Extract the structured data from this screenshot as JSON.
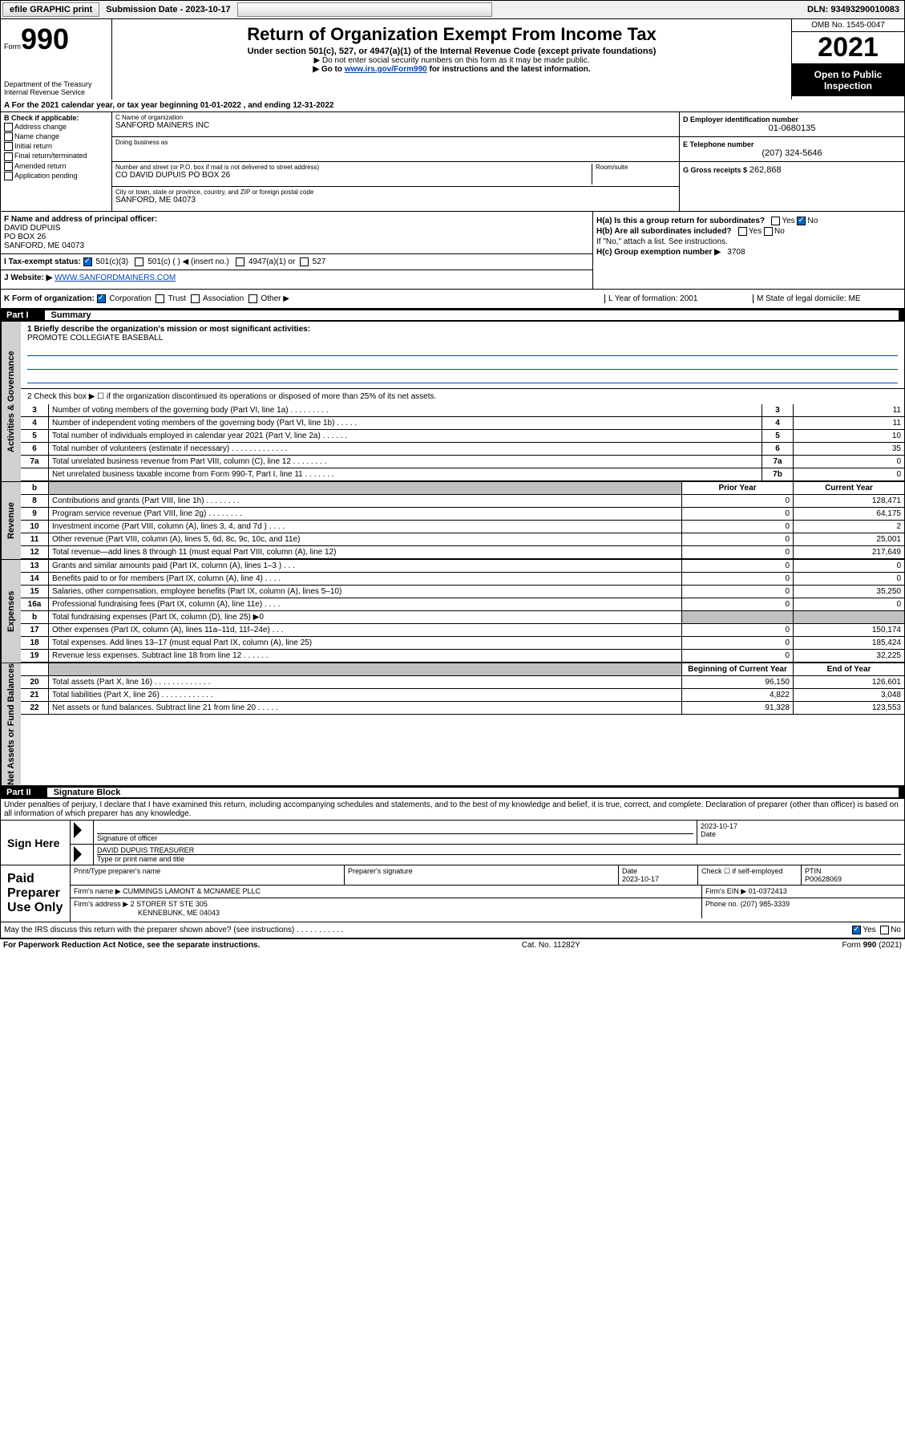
{
  "topbar": {
    "efile": "efile GRAPHIC print",
    "submission_label": "Submission Date",
    "submission_date": "2023-10-17",
    "dln": "DLN: 93493290010083"
  },
  "header": {
    "form_prefix": "Form",
    "form_number": "990",
    "dept": "Department of the Treasury",
    "irs": "Internal Revenue Service",
    "title": "Return of Organization Exempt From Income Tax",
    "subtitle": "Under section 501(c), 527, or 4947(a)(1) of the Internal Revenue Code (except private foundations)",
    "note1": "▶ Do not enter social security numbers on this form as it may be made public.",
    "note2_prefix": "▶ Go to ",
    "note2_link": "www.irs.gov/Form990",
    "note2_suffix": " for instructions and the latest information.",
    "omb": "OMB No. 1545-0047",
    "year": "2021",
    "inspection": "Open to Public Inspection"
  },
  "section_a": {
    "line_a": "A For the 2021 calendar year, or tax year beginning 01-01-2022   , and ending 12-31-2022",
    "b_label": "B Check if applicable:",
    "b_items": [
      "Address change",
      "Name change",
      "Initial return",
      "Final return/terminated",
      "Amended return",
      "Application pending"
    ],
    "c_name_label": "C Name of organization",
    "c_name": "SANFORD MAINERS INC",
    "dba_label": "Doing business as",
    "dba": "",
    "addr_label": "Number and street (or P.O. box if mail is not delivered to street address)",
    "room_label": "Room/suite",
    "addr": "CO DAVID DUPUIS PO BOX 26",
    "city_label": "City or town, state or province, country, and ZIP or foreign postal code",
    "city": "SANFORD, ME  04073",
    "d_label": "D Employer identification number",
    "d_val": "01-0680135",
    "e_label": "E Telephone number",
    "e_val": "(207) 324-5646",
    "g_label": "G Gross receipts $",
    "g_val": "262,868"
  },
  "fh": {
    "f_label": "F Name and address of principal officer:",
    "f_name": "DAVID DUPUIS",
    "f_addr1": "PO BOX 26",
    "f_addr2": "SANFORD, ME  04073",
    "ha": "H(a)  Is this a group return for subordinates?",
    "ha_yes": "Yes",
    "ha_no": "No",
    "hb": "H(b)  Are all subordinates included?",
    "hb_yes": "Yes",
    "hb_no": "No",
    "hb_note": "If \"No,\" attach a list. See instructions.",
    "hc": "H(c)  Group exemption number ▶",
    "hc_val": "3708",
    "i_label": "I   Tax-exempt status:",
    "i_501c3": "501(c)(3)",
    "i_501c": "501(c) (   ) ◀ (insert no.)",
    "i_4947": "4947(a)(1) or",
    "i_527": "527",
    "j_label": "J   Website: ▶",
    "j_val": "WWW.SANFORDMAINERS.COM"
  },
  "klm": {
    "k": "K Form of organization:",
    "k_corp": "Corporation",
    "k_trust": "Trust",
    "k_assoc": "Association",
    "k_other": "Other ▶",
    "l": "L Year of formation: 2001",
    "m": "M State of legal domicile: ME"
  },
  "part1": {
    "header_pt": "Part I",
    "header_title": "Summary",
    "tab_gov": "Activities & Governance",
    "tab_rev": "Revenue",
    "tab_exp": "Expenses",
    "tab_net": "Net Assets or Fund Balances",
    "q1": "1   Briefly describe the organization's mission or most significant activities:",
    "mission": "PROMOTE COLLEGIATE BASEBALL",
    "q2": "2   Check this box ▶ ☐  if the organization discontinued its operations or disposed of more than 25% of its net assets.",
    "rows_gov": [
      {
        "n": "3",
        "d": "Number of voting members of the governing body (Part VI, line 1a)   .    .    .    .    .    .    .    .    .",
        "b": "3",
        "v": "11"
      },
      {
        "n": "4",
        "d": "Number of independent voting members of the governing body (Part VI, line 1b)    .    .    .    .    .",
        "b": "4",
        "v": "11"
      },
      {
        "n": "5",
        "d": "Total number of individuals employed in calendar year 2021 (Part V, line 2a)   .    .    .    .    .    .",
        "b": "5",
        "v": "10"
      },
      {
        "n": "6",
        "d": "Total number of volunteers (estimate if necessary)    .    .    .    .    .    .    .    .    .    .    .    .    .",
        "b": "6",
        "v": "35"
      },
      {
        "n": "7a",
        "d": "Total unrelated business revenue from Part VIII, column (C), line 12   .    .    .    .    .    .    .    .",
        "b": "7a",
        "v": "0"
      },
      {
        "n": "",
        "d": "Net unrelated business taxable income from Form 990-T, Part I, line 11    .    .    .    .    .    .    .",
        "b": "7b",
        "v": "0"
      }
    ],
    "hdr_prior": "Prior Year",
    "hdr_curr": "Current Year",
    "rows_rev": [
      {
        "n": "8",
        "d": "Contributions and grants (Part VIII, line 1h)    .    .    .    .    .    .    .    .",
        "p": "0",
        "c": "128,471"
      },
      {
        "n": "9",
        "d": "Program service revenue (Part VIII, line 2g)    .    .    .    .    .    .    .    .",
        "p": "0",
        "c": "64,175"
      },
      {
        "n": "10",
        "d": "Investment income (Part VIII, column (A), lines 3, 4, and 7d )    .    .    .    .",
        "p": "0",
        "c": "2"
      },
      {
        "n": "11",
        "d": "Other revenue (Part VIII, column (A), lines 5, 6d, 8c, 9c, 10c, and 11e)",
        "p": "0",
        "c": "25,001"
      },
      {
        "n": "12",
        "d": "Total revenue—add lines 8 through 11 (must equal Part VIII, column (A), line 12)",
        "p": "0",
        "c": "217,649"
      }
    ],
    "rows_exp": [
      {
        "n": "13",
        "d": "Grants and similar amounts paid (Part IX, column (A), lines 1–3 )    .    .    .",
        "p": "0",
        "c": "0"
      },
      {
        "n": "14",
        "d": "Benefits paid to or for members (Part IX, column (A), line 4)    .    .    .    .",
        "p": "0",
        "c": "0"
      },
      {
        "n": "15",
        "d": "Salaries, other compensation, employee benefits (Part IX, column (A), lines 5–10)",
        "p": "0",
        "c": "35,250"
      },
      {
        "n": "16a",
        "d": "Professional fundraising fees (Part IX, column (A), line 11e)    .    .    .    .",
        "p": "0",
        "c": "0"
      },
      {
        "n": "b",
        "d": "Total fundraising expenses (Part IX, column (D), line 25) ▶0",
        "p": "",
        "c": "",
        "gray": true
      },
      {
        "n": "17",
        "d": "Other expenses (Part IX, column (A), lines 11a–11d, 11f–24e)    .    .    .",
        "p": "0",
        "c": "150,174"
      },
      {
        "n": "18",
        "d": "Total expenses. Add lines 13–17 (must equal Part IX, column (A), line 25)",
        "p": "0",
        "c": "185,424"
      },
      {
        "n": "19",
        "d": "Revenue less expenses. Subtract line 18 from line 12    .    .    .    .    .    .",
        "p": "0",
        "c": "32,225"
      }
    ],
    "hdr_boy": "Beginning of Current Year",
    "hdr_eoy": "End of Year",
    "rows_net": [
      {
        "n": "20",
        "d": "Total assets (Part X, line 16)    .    .    .    .    .    .    .    .    .    .    .    .    .",
        "p": "96,150",
        "c": "126,601"
      },
      {
        "n": "21",
        "d": "Total liabilities (Part X, line 26)    .    .    .    .    .    .    .    .    .    .    .    .",
        "p": "4,822",
        "c": "3,048"
      },
      {
        "n": "22",
        "d": "Net assets or fund balances. Subtract line 21 from line 20    .    .    .    .    .",
        "p": "91,328",
        "c": "123,553"
      }
    ]
  },
  "part2": {
    "header_pt": "Part II",
    "header_title": "Signature Block",
    "penalties": "Under penalties of perjury, I declare that I have examined this return, including accompanying schedules and statements, and to the best of my knowledge and belief, it is true, correct, and complete. Declaration of preparer (other than officer) is based on all information of which preparer has any knowledge.",
    "sign_here": "Sign Here",
    "sig_officer": "Signature of officer",
    "sig_date": "Date",
    "sig_date_val": "2023-10-17",
    "sig_name": "DAVID DUPUIS TREASURER",
    "sig_name_label": "Type or print name and title",
    "paid": "Paid Preparer Use Only",
    "prep_name_label": "Print/Type preparer's name",
    "prep_sig_label": "Preparer's signature",
    "prep_date_label": "Date",
    "prep_date_val": "2023-10-17",
    "prep_check_label": "Check ☐ if self-employed",
    "prep_ptin_label": "PTIN",
    "prep_ptin": "P00628069",
    "firm_name_label": "Firm's name    ▶",
    "firm_name": "CUMMINGS LAMONT & MCNAMEE PLLC",
    "firm_ein_label": "Firm's EIN ▶",
    "firm_ein": "01-0372413",
    "firm_addr_label": "Firm's address ▶",
    "firm_addr1": "2 STORER ST STE 305",
    "firm_addr2": "KENNEBUNK, ME  04043",
    "firm_phone_label": "Phone no.",
    "firm_phone": "(207) 985-3339",
    "discuss": "May the IRS discuss this return with the preparer shown above? (see instructions)    .    .    .    .    .    .    .    .    .    .    .",
    "discuss_yes": "Yes",
    "discuss_no": "No"
  },
  "footer": {
    "paperwork": "For Paperwork Reduction Act Notice, see the separate instructions.",
    "cat": "Cat. No. 11282Y",
    "form": "Form 990 (2021)"
  }
}
